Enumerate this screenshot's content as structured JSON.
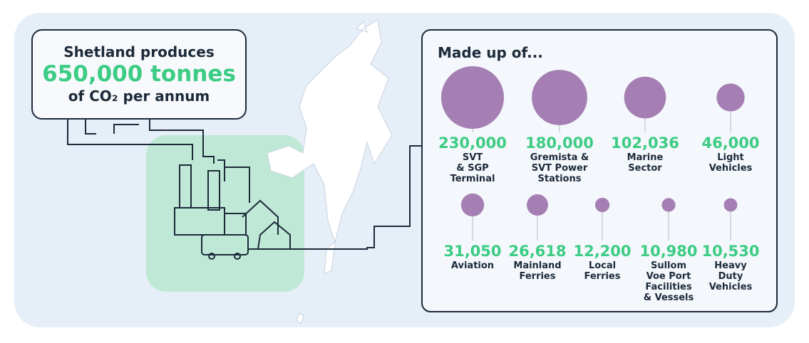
{
  "header": {
    "line1": "Shetland produces",
    "line2": "650,000 tonnes",
    "line3": "of CO₂ per annum"
  },
  "breakdown": {
    "title": "Made up of...",
    "items": [
      {
        "value": 230000,
        "value_label": "230,000",
        "label": [
          "SVT",
          "& SGP",
          "Terminal"
        ]
      },
      {
        "value": 180000,
        "value_label": "180,000",
        "label": [
          "Gremista &",
          "SVT Power",
          "Stations"
        ]
      },
      {
        "value": 102036,
        "value_label": "102,036",
        "label": [
          "Marine",
          "Sector"
        ]
      },
      {
        "value": 46000,
        "value_label": "46,000",
        "label": [
          "Light",
          "Vehicles"
        ]
      },
      {
        "value": 31050,
        "value_label": "31,050",
        "label": [
          "Aviation"
        ]
      },
      {
        "value": 26618,
        "value_label": "26,618",
        "label": [
          "Mainland",
          "Ferries"
        ]
      },
      {
        "value": 12200,
        "value_label": "12,200",
        "label": [
          "Local",
          "Ferries"
        ]
      },
      {
        "value": 10980,
        "value_label": "10,980",
        "label": [
          "Sullom",
          "Voe Port",
          "Facilities",
          "& Vessels"
        ]
      },
      {
        "value": 10530,
        "value_label": "10,530",
        "label": [
          "Heavy",
          "Duty",
          "Vehicles"
        ]
      }
    ]
  }
}
